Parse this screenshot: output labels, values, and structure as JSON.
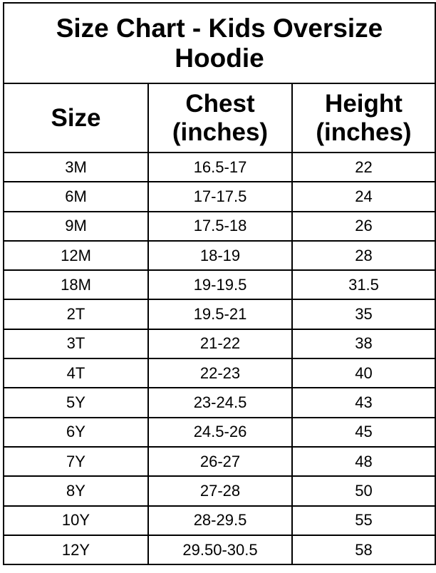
{
  "title": "Size Chart - Kids Oversize Hoodie",
  "title_line1": "Size Chart - Kids Oversize",
  "title_line2": "Hoodie",
  "columns": {
    "size": "Size",
    "chest_line1": "Chest",
    "chest_line2": "(inches)",
    "height_line1": "Height",
    "height_line2": "(inches)"
  },
  "rows": [
    {
      "size": "3M",
      "chest": "16.5-17",
      "height": "22"
    },
    {
      "size": "6M",
      "chest": "17-17.5",
      "height": "24"
    },
    {
      "size": "9M",
      "chest": "17.5-18",
      "height": "26"
    },
    {
      "size": "12M",
      "chest": "18-19",
      "height": "28"
    },
    {
      "size": "18M",
      "chest": "19-19.5",
      "height": "31.5"
    },
    {
      "size": "2T",
      "chest": "19.5-21",
      "height": "35"
    },
    {
      "size": "3T",
      "chest": "21-22",
      "height": "38"
    },
    {
      "size": "4T",
      "chest": "22-23",
      "height": "40"
    },
    {
      "size": "5Y",
      "chest": "23-24.5",
      "height": "43"
    },
    {
      "size": "6Y",
      "chest": "24.5-26",
      "height": "45"
    },
    {
      "size": "7Y",
      "chest": "26-27",
      "height": "48"
    },
    {
      "size": "8Y",
      "chest": "27-28",
      "height": "50"
    },
    {
      "size": "10Y",
      "chest": "28-29.5",
      "height": "55"
    },
    {
      "size": "12Y",
      "chest": "29.50-30.5",
      "height": "58"
    }
  ]
}
